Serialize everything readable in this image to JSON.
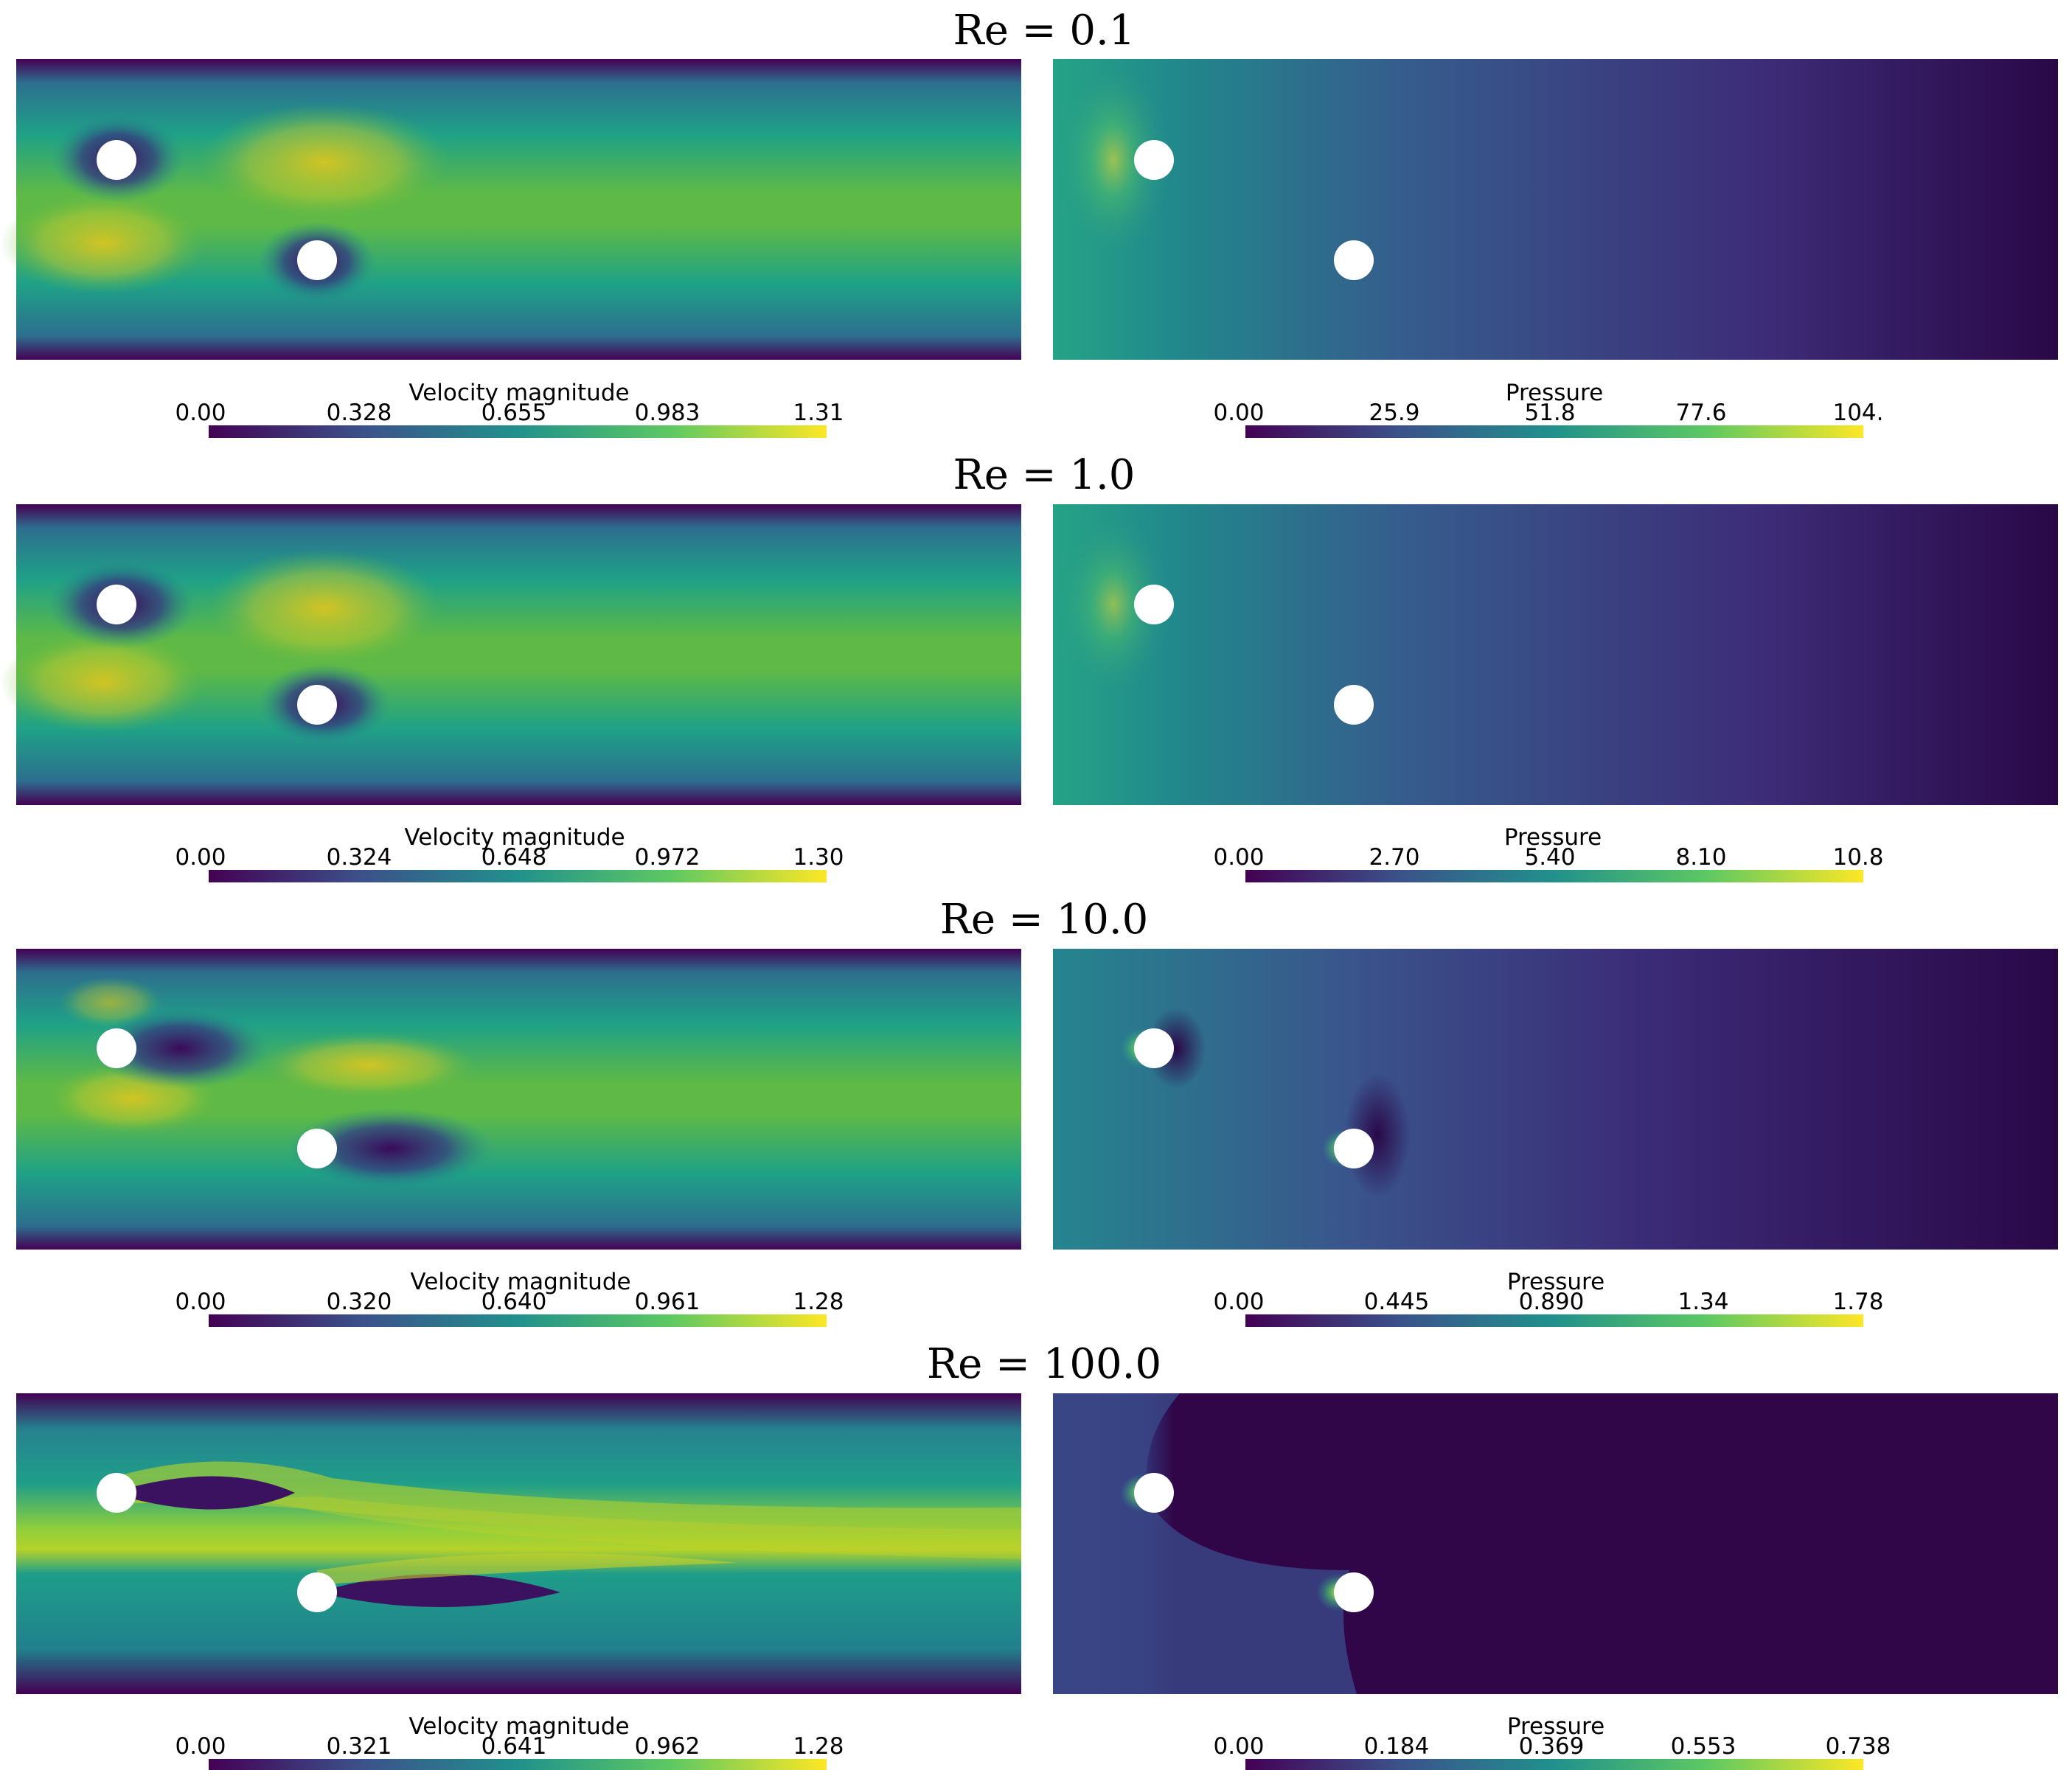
{
  "colormap": [
    "#440154",
    "#3b528b",
    "#21918c",
    "#5ec962",
    "#fde725"
  ],
  "rows": [
    {
      "title": "Re = 0.1",
      "velocity": {
        "label": "Velocity magnitude",
        "ticks": [
          "0.00",
          "0.328",
          "0.655",
          "0.983",
          "1.31"
        ]
      },
      "pressure": {
        "label": "Pressure",
        "ticks": [
          "0.00",
          "25.9",
          "51.8",
          "77.6",
          "104."
        ]
      }
    },
    {
      "title": "Re = 1.0",
      "velocity": {
        "label": "Velocity magnitude",
        "ticks": [
          "0.00",
          "0.324",
          "0.648",
          "0.972",
          "1.30"
        ]
      },
      "pressure": {
        "label": "Pressure",
        "ticks": [
          "0.00",
          "2.70",
          "5.40",
          "8.10",
          "10.8"
        ]
      }
    },
    {
      "title": "Re = 10.0",
      "velocity": {
        "label": "Velocity magnitude",
        "ticks": [
          "0.00",
          "0.320",
          "0.640",
          "0.961",
          "1.28"
        ]
      },
      "pressure": {
        "label": "Pressure",
        "ticks": [
          "0.00",
          "0.445",
          "0.890",
          "1.34",
          "1.78"
        ]
      }
    },
    {
      "title": "Re = 100.0",
      "velocity": {
        "label": "Velocity magnitude",
        "ticks": [
          "0.00",
          "0.321",
          "0.641",
          "0.962",
          "1.28"
        ]
      },
      "pressure": {
        "label": "Pressure",
        "ticks": [
          "0.00",
          "0.184",
          "0.369",
          "0.553",
          "0.738"
        ]
      }
    }
  ]
}
